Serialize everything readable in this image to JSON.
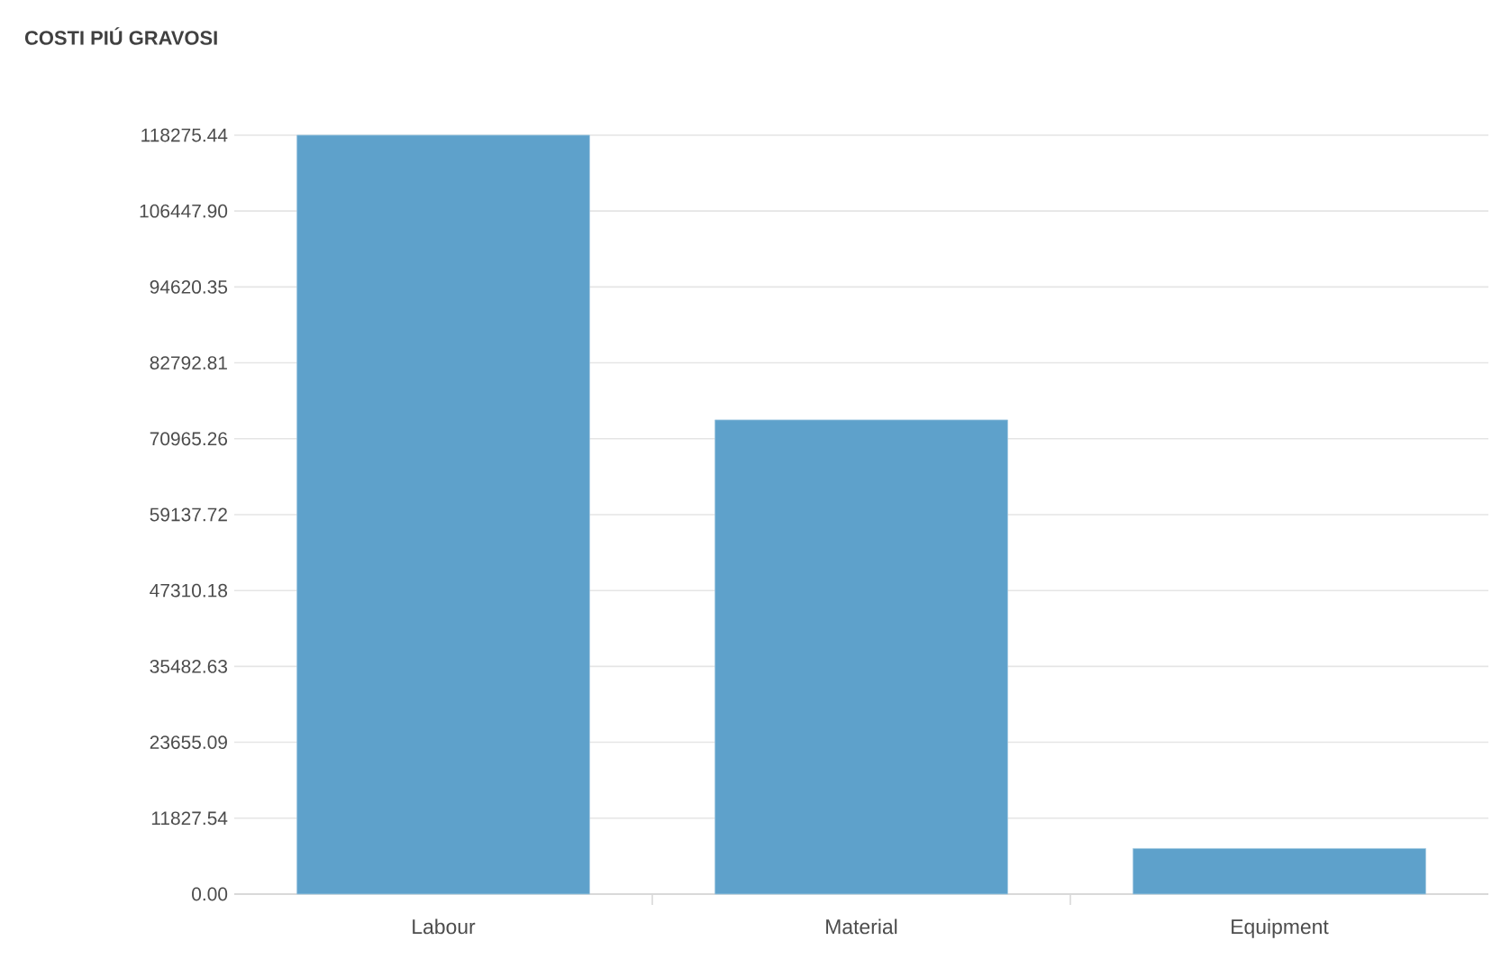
{
  "chart_data": {
    "type": "bar",
    "title": "COSTI PIÚ GRAVOSI",
    "categories": [
      "Labour",
      "Material",
      "Equipment"
    ],
    "values": [
      118275.44,
      73900,
      7100
    ],
    "color": "#5ea1cb",
    "ylim": [
      0,
      118275.44
    ],
    "yticks": [
      {
        "value": 0,
        "label": "0.00"
      },
      {
        "value": 11827.54,
        "label": "11827.54"
      },
      {
        "value": 23655.09,
        "label": "23655.09"
      },
      {
        "value": 35482.63,
        "label": "35482.63"
      },
      {
        "value": 47310.18,
        "label": "47310.18"
      },
      {
        "value": 59137.72,
        "label": "59137.72"
      },
      {
        "value": 70965.26,
        "label": "70965.26"
      },
      {
        "value": 82792.81,
        "label": "82792.81"
      },
      {
        "value": 94620.35,
        "label": "94620.35"
      },
      {
        "value": 106447.9,
        "label": "106447.90"
      },
      {
        "value": 118275.44,
        "label": "118275.44"
      }
    ],
    "grid": "y"
  }
}
